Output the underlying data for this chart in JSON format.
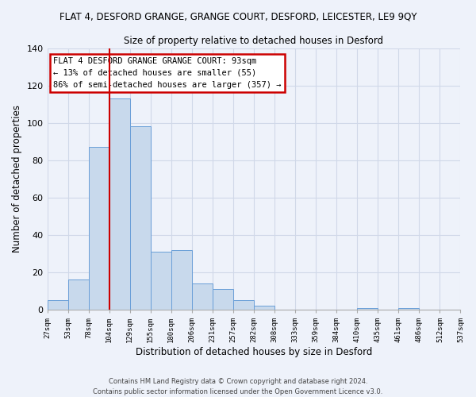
{
  "title": "FLAT 4, DESFORD GRANGE, GRANGE COURT, DESFORD, LEICESTER, LE9 9QY",
  "subtitle": "Size of property relative to detached houses in Desford",
  "xlabel": "Distribution of detached houses by size in Desford",
  "ylabel": "Number of detached properties",
  "bar_values": [
    5,
    16,
    87,
    113,
    98,
    31,
    32,
    14,
    11,
    5,
    2,
    0,
    0,
    0,
    0,
    1,
    0,
    1,
    0,
    0
  ],
  "bin_labels": [
    "27sqm",
    "53sqm",
    "78sqm",
    "104sqm",
    "129sqm",
    "155sqm",
    "180sqm",
    "206sqm",
    "231sqm",
    "257sqm",
    "282sqm",
    "308sqm",
    "333sqm",
    "359sqm",
    "384sqm",
    "410sqm",
    "435sqm",
    "461sqm",
    "486sqm",
    "512sqm",
    "537sqm"
  ],
  "bar_color": "#c8d9ec",
  "bar_edge_color": "#6a9fd8",
  "grid_color": "#d0d8e8",
  "background_color": "#eef2fa",
  "vline_color": "#cc0000",
  "annotation_title": "FLAT 4 DESFORD GRANGE GRANGE COURT: 93sqm",
  "annotation_line1": "← 13% of detached houses are smaller (55)",
  "annotation_line2": "86% of semi-detached houses are larger (357) →",
  "annotation_box_color": "#ffffff",
  "annotation_border_color": "#cc0000",
  "ylim": [
    0,
    140
  ],
  "yticks": [
    0,
    20,
    40,
    60,
    80,
    100,
    120,
    140
  ],
  "footer1": "Contains HM Land Registry data © Crown copyright and database right 2024.",
  "footer2": "Contains public sector information licensed under the Open Government Licence v3.0."
}
